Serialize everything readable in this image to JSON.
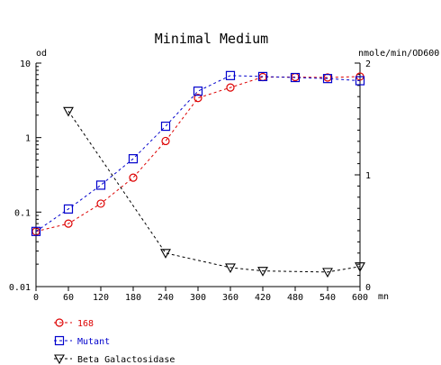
{
  "chart_data": {
    "type": "line",
    "title": "Minimal Medium",
    "xlabel": "mn",
    "ylabel_left": "od",
    "ylabel_right": "nmole/min/OD600",
    "x_ticks": [
      "0",
      "60",
      "120",
      "180",
      "240",
      "300",
      "360",
      "420",
      "480",
      "540",
      "600"
    ],
    "y_left_ticks": [
      "0.01",
      "0.1",
      "1",
      "10"
    ],
    "y_right_ticks": [
      "0",
      "1",
      "2"
    ],
    "xlim": [
      0,
      600
    ],
    "ylim_left": [
      0.01,
      10
    ],
    "ylim_left_scale": "log",
    "ylim_right": [
      0,
      2
    ],
    "grid": false,
    "legend_position": "bottom-left",
    "series": [
      {
        "name": "168",
        "axis": "left",
        "color": "#dd0000",
        "marker": "circle",
        "x": [
          0,
          60,
          120,
          180,
          240,
          300,
          360,
          420,
          480,
          540,
          600
        ],
        "y": [
          0.055,
          0.07,
          0.13,
          0.29,
          0.9,
          3.4,
          4.7,
          6.5,
          6.5,
          6.4,
          6.6
        ]
      },
      {
        "name": "Mutant",
        "axis": "left",
        "color": "#0000cc",
        "marker": "square",
        "x": [
          0,
          60,
          120,
          180,
          240,
          300,
          360,
          420,
          480,
          540,
          600
        ],
        "y": [
          0.055,
          0.11,
          0.23,
          0.52,
          1.42,
          4.2,
          6.8,
          6.6,
          6.4,
          6.2,
          5.8
        ]
      },
      {
        "name": "Beta Galactosidase",
        "axis": "right",
        "color": "#000000",
        "marker": "triangle-down",
        "x": [
          60,
          240,
          360,
          420,
          540,
          600
        ],
        "y": [
          1.57,
          0.3,
          0.17,
          0.14,
          0.13,
          0.18
        ]
      }
    ]
  }
}
